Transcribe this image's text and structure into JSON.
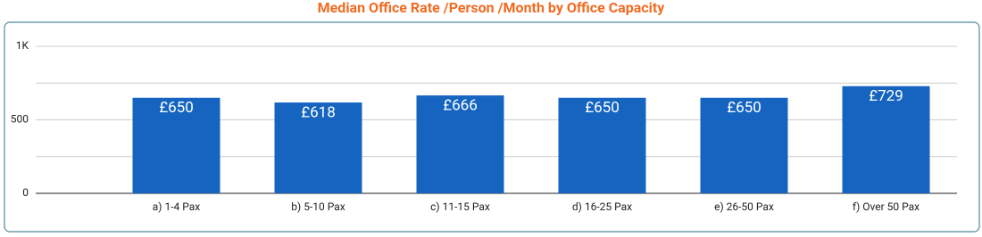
{
  "chart_data": {
    "type": "bar",
    "title": "Median Office Rate /Person /Month by Office Capacity",
    "categories": [
      "a) 1-4 Pax",
      "b) 5-10 Pax",
      "c) 11-15 Pax",
      "d) 16-25 Pax",
      "e) 26-50 Pax",
      "f) Over 50 Pax"
    ],
    "values": [
      650,
      618,
      666,
      650,
      650,
      729
    ],
    "value_labels": [
      "£650",
      "£618",
      "£666",
      "£650",
      "£650",
      "£729"
    ],
    "color": "#1565c0",
    "ylim": [
      0,
      1000
    ],
    "yticks": [
      0,
      500,
      {
        "value": 1000,
        "label": "1K"
      }
    ],
    "minor_gridlines": [
      250,
      750
    ],
    "grid": true
  }
}
